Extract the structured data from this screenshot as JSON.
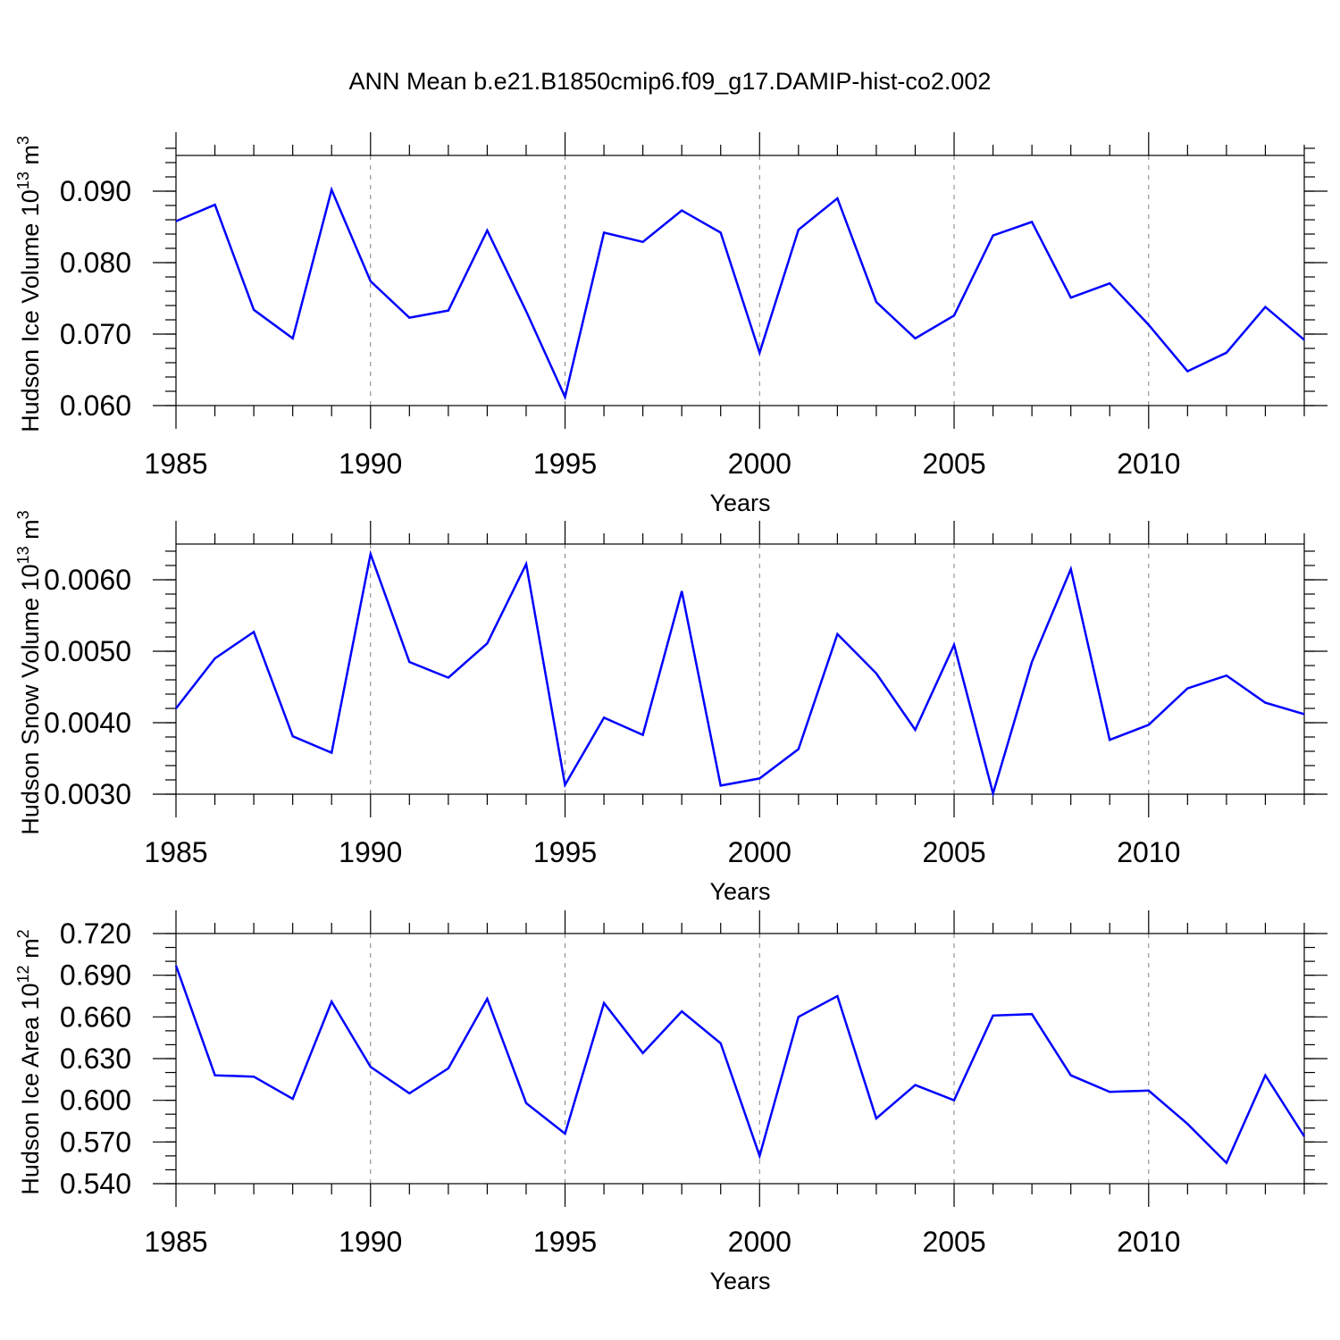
{
  "title": "ANN Mean b.e21.B1850cmip6.f09_g17.DAMIP-hist-co2.002",
  "colors": {
    "line": "#0000ff",
    "grid": "#808080",
    "axis": "#000000"
  },
  "chart_data": [
    {
      "type": "line",
      "xlabel": "Years",
      "ylabel": "Hudson Ice Volume 10",
      "ylabel_exp": "13",
      "ylabel_unit": "m",
      "ylabel_unit_exp": "3",
      "xlim": [
        1985,
        2014
      ],
      "ylim": [
        0.06,
        0.095
      ],
      "x_ticks": [
        "1985",
        "1990",
        "1995",
        "2000",
        "2005",
        "2010"
      ],
      "y_ticks": [
        "0.060",
        "0.070",
        "0.080",
        "0.090"
      ],
      "y_tick_values": [
        0.06,
        0.07,
        0.08,
        0.09
      ],
      "y_minor_step": 0.002,
      "grid": "vertical dashed at major x ticks",
      "x": [
        1985,
        1986,
        1987,
        1988,
        1989,
        1990,
        1991,
        1992,
        1993,
        1994,
        1995,
        1996,
        1997,
        1998,
        1999,
        2000,
        2001,
        2002,
        2003,
        2004,
        2005,
        2006,
        2007,
        2008,
        2009,
        2010,
        2011,
        2012,
        2013,
        2014
      ],
      "values": [
        0.0858,
        0.0881,
        0.0734,
        0.0694,
        0.0902,
        0.0774,
        0.0723,
        0.0733,
        0.0845,
        0.0732,
        0.0612,
        0.0842,
        0.0829,
        0.0873,
        0.0842,
        0.0674,
        0.0846,
        0.089,
        0.0745,
        0.0694,
        0.0726,
        0.0838,
        0.0857,
        0.0751,
        0.0771,
        0.0713,
        0.0648,
        0.0674,
        0.0738,
        0.0692
      ]
    },
    {
      "type": "line",
      "xlabel": "Years",
      "ylabel": "Hudson Snow Volume 10",
      "ylabel_exp": "13",
      "ylabel_unit": "m",
      "ylabel_unit_exp": "3",
      "xlim": [
        1985,
        2014
      ],
      "ylim": [
        0.003,
        0.0065
      ],
      "x_ticks": [
        "1985",
        "1990",
        "1995",
        "2000",
        "2005",
        "2010"
      ],
      "y_ticks": [
        "0.0030",
        "0.0040",
        "0.0050",
        "0.0060"
      ],
      "y_tick_values": [
        0.003,
        0.004,
        0.005,
        0.006
      ],
      "y_minor_step": 0.0002,
      "grid": "vertical dashed at major x ticks",
      "x": [
        1985,
        1986,
        1987,
        1988,
        1989,
        1990,
        1991,
        1992,
        1993,
        1994,
        1995,
        1996,
        1997,
        1998,
        1999,
        2000,
        2001,
        2002,
        2003,
        2004,
        2005,
        2006,
        2007,
        2008,
        2009,
        2010,
        2011,
        2012,
        2013,
        2014
      ],
      "values": [
        0.0042,
        0.0049,
        0.00527,
        0.00381,
        0.00358,
        0.00636,
        0.00485,
        0.00463,
        0.00511,
        0.00622,
        0.00313,
        0.00407,
        0.00383,
        0.00584,
        0.00312,
        0.00322,
        0.00363,
        0.00524,
        0.00469,
        0.0039,
        0.00509,
        0.00301,
        0.00485,
        0.00615,
        0.00376,
        0.00397,
        0.00448,
        0.00466,
        0.00428,
        0.00412
      ]
    },
    {
      "type": "line",
      "xlabel": "Years",
      "ylabel": "Hudson Ice Area 10",
      "ylabel_exp": "12",
      "ylabel_unit": "m",
      "ylabel_unit_exp": "2",
      "xlim": [
        1985,
        2014
      ],
      "ylim": [
        0.54,
        0.72
      ],
      "x_ticks": [
        "1985",
        "1990",
        "1995",
        "2000",
        "2005",
        "2010"
      ],
      "y_ticks": [
        "0.540",
        "0.570",
        "0.600",
        "0.630",
        "0.660",
        "0.690",
        "0.720"
      ],
      "y_tick_values": [
        0.54,
        0.57,
        0.6,
        0.63,
        0.66,
        0.69,
        0.72
      ],
      "y_minor_step": 0.01,
      "grid": "vertical dashed at major x ticks",
      "x": [
        1985,
        1986,
        1987,
        1988,
        1989,
        1990,
        1991,
        1992,
        1993,
        1994,
        1995,
        1996,
        1997,
        1998,
        1999,
        2000,
        2001,
        2002,
        2003,
        2004,
        2005,
        2006,
        2007,
        2008,
        2009,
        2010,
        2011,
        2012,
        2013,
        2014
      ],
      "values": [
        0.697,
        0.618,
        0.617,
        0.601,
        0.671,
        0.624,
        0.605,
        0.623,
        0.673,
        0.598,
        0.576,
        0.67,
        0.634,
        0.664,
        0.641,
        0.56,
        0.66,
        0.675,
        0.587,
        0.611,
        0.6,
        0.661,
        0.662,
        0.618,
        0.606,
        0.607,
        0.583,
        0.555,
        0.618,
        0.574
      ]
    }
  ]
}
